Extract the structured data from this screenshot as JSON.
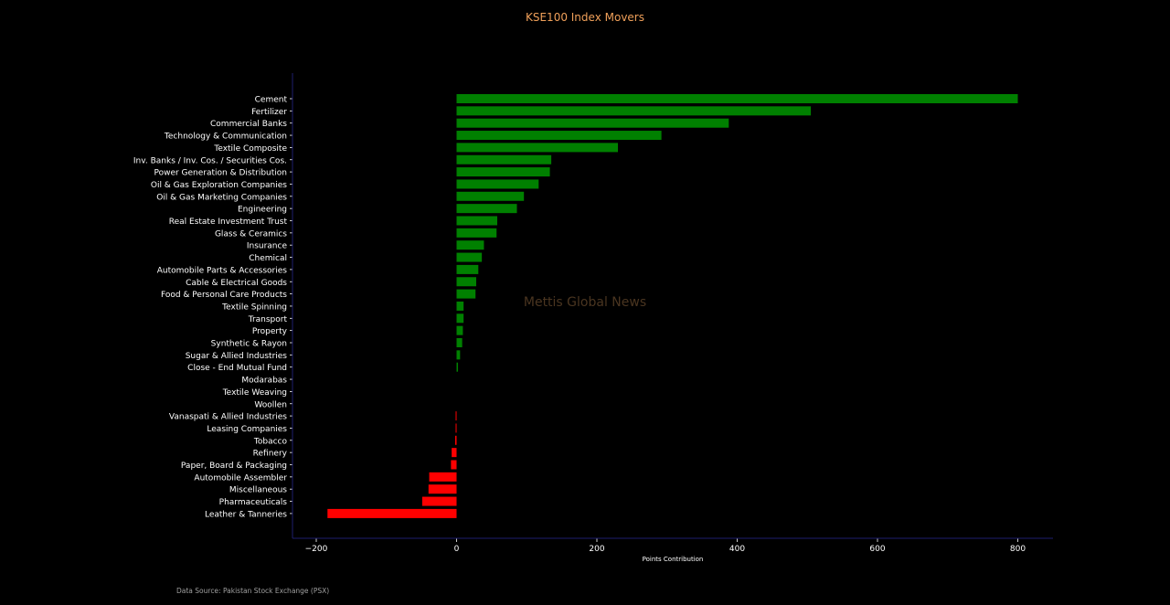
{
  "chart_data": {
    "type": "bar",
    "orientation": "horizontal",
    "title": "KSE100 Index Movers",
    "xlabel": "Points Contribution",
    "ylabel": "",
    "watermark": "Mettis Global News",
    "source_note": "Data Source: Pakistan Stock Exchange (PSX)",
    "xlim": [
      -230,
      850
    ],
    "xticks": [
      -200,
      0,
      200,
      400,
      600,
      800
    ],
    "xtick_labels": [
      "−200",
      "0",
      "200",
      "400",
      "600",
      "800"
    ],
    "grid": false,
    "colors": {
      "positive": "#008000",
      "negative": "#ff0000",
      "title": "#f0a05a",
      "text": "#ffffff",
      "axis": "#1e1e6e",
      "watermark": "#4a3520",
      "note": "#a0a0a0"
    },
    "categories": [
      "Cement",
      "Fertilizer",
      "Commercial Banks",
      "Technology & Communication",
      "Textile Composite",
      "Inv. Banks / Inv. Cos. / Securities Cos.",
      "Power Generation & Distribution",
      "Oil & Gas Exploration Companies",
      "Oil & Gas Marketing Companies",
      "Engineering",
      "Real Estate Investment Trust",
      "Glass & Ceramics",
      "Insurance",
      "Chemical",
      "Automobile Parts & Accessories",
      "Cable & Electrical Goods",
      "Food & Personal Care Products",
      "Textile Spinning",
      "Transport",
      "Property",
      "Synthetic & Rayon",
      "Sugar & Allied Industries",
      "Close - End Mutual Fund",
      "Modarabas",
      "Textile Weaving",
      "Woollen",
      "Vanaspati & Allied Industries",
      "Leasing Companies",
      "Tobacco",
      "Refinery",
      "Paper, Board & Packaging",
      "Automobile Assembler",
      "Miscellaneous",
      "Pharmaceuticals",
      "Leather & Tanneries"
    ],
    "values": [
      800,
      505,
      388,
      292,
      230,
      135,
      133,
      117,
      96,
      86,
      58,
      57,
      39,
      36,
      31,
      28,
      27,
      10,
      10,
      9,
      8,
      5,
      2,
      0,
      0,
      0,
      -1,
      -1,
      -2,
      -7,
      -8,
      -39,
      -40,
      -49,
      -184
    ]
  }
}
